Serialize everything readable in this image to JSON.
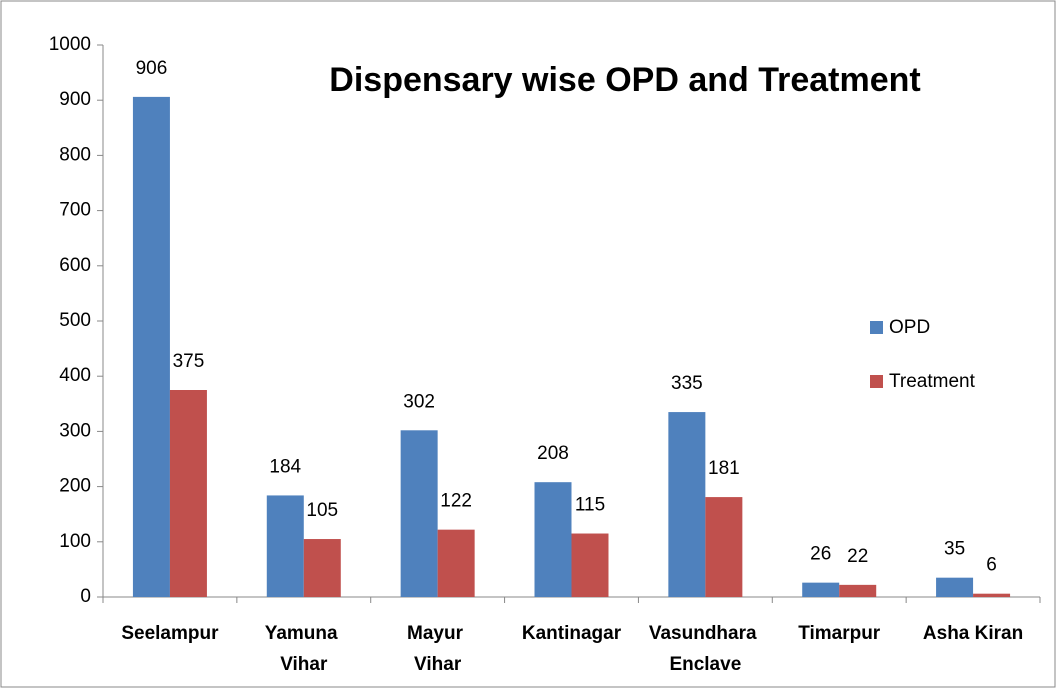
{
  "chart_data": {
    "type": "bar",
    "title": "Dispensary wise OPD and Treatment",
    "categories": [
      "Seelampur",
      "Yamuna\nVihar",
      "Mayur\nVihar",
      "Kantinagar",
      "Vasundhara\nEnclave",
      "Timarpur",
      "Asha Kiran"
    ],
    "series": [
      {
        "name": "OPD",
        "color": "#4f81bd",
        "values": [
          906,
          184,
          302,
          208,
          335,
          26,
          35
        ]
      },
      {
        "name": "Treatment",
        "color": "#c0504d",
        "values": [
          375,
          105,
          122,
          115,
          181,
          22,
          6
        ]
      }
    ],
    "ylim": [
      0,
      1000
    ],
    "yticks": [
      0,
      100,
      200,
      300,
      400,
      500,
      600,
      700,
      800,
      900,
      1000
    ],
    "legend": "right",
    "grid": false
  }
}
